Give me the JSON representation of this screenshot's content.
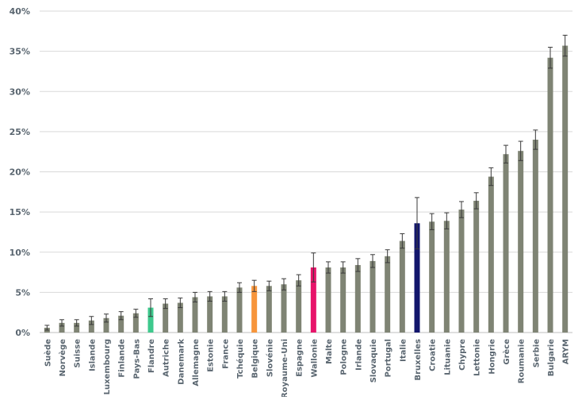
{
  "chart_data": {
    "type": "bar",
    "title": "",
    "xlabel": "",
    "ylabel": "",
    "ylim": [
      0,
      40
    ],
    "y_ticks": [
      "0%",
      "5%",
      "10%",
      "15%",
      "20%",
      "25%",
      "30%",
      "35%",
      "40%"
    ],
    "y_tick_values": [
      0,
      5,
      10,
      15,
      20,
      25,
      30,
      35,
      40
    ],
    "grid": true,
    "legend": "none",
    "categories": [
      "Suède",
      "Norvège",
      "Suisse",
      "Islande",
      "Luxembourg",
      "Finlande",
      "Pays-Bas",
      "Flandre",
      "Autriche",
      "Danemark",
      "Allemagne",
      "Estonie",
      "France",
      "Tchéquie",
      "Belgique",
      "Slovénie",
      "Royaume-Uni",
      "Espagne",
      "Wallonie",
      "Malte",
      "Pologne",
      "Irlande",
      "Slovaquie",
      "Portugal",
      "Italie",
      "Bruxelles",
      "Croatie",
      "Lituanie",
      "Chypre",
      "Lettonie",
      "Hongrie",
      "Grèce",
      "Roumanie",
      "Serbie",
      "Bulgarie",
      "ARYM"
    ],
    "values": [
      0.6,
      1.2,
      1.2,
      1.5,
      1.8,
      2.1,
      2.4,
      3.1,
      3.6,
      3.7,
      4.4,
      4.5,
      4.5,
      5.6,
      5.8,
      5.8,
      6.0,
      6.5,
      8.1,
      8.1,
      8.1,
      8.4,
      8.9,
      9.5,
      11.4,
      13.6,
      13.8,
      13.9,
      15.3,
      16.4,
      19.4,
      22.2,
      22.6,
      24.0,
      34.2,
      35.7
    ],
    "error": [
      0.3,
      0.4,
      0.4,
      0.5,
      0.5,
      0.5,
      0.5,
      1.1,
      0.6,
      0.6,
      0.6,
      0.6,
      0.6,
      0.6,
      0.7,
      0.6,
      0.7,
      0.7,
      1.8,
      0.7,
      0.7,
      0.8,
      0.8,
      0.8,
      0.9,
      3.2,
      1.0,
      1.0,
      1.0,
      1.0,
      1.1,
      1.1,
      1.2,
      1.2,
      1.3,
      1.3
    ],
    "default_color": "#7f8474",
    "highlight_colors": {
      "Flandre": "#3ec98d",
      "Belgique": "#f7953b",
      "Wallonie": "#e7146a",
      "Bruxelles": "#12166c"
    }
  }
}
